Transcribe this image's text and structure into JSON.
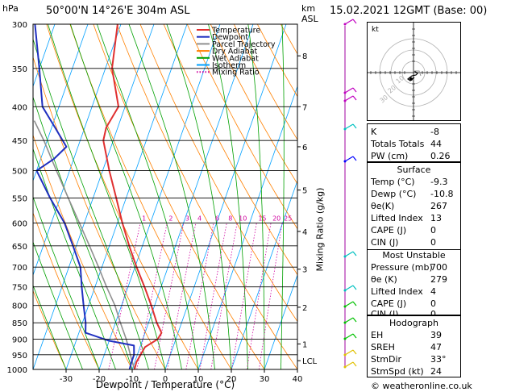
{
  "header": {
    "location": "50°00'N 14°26'E 304m ASL",
    "datetime": "15.02.2021 12GMT (Base: 00)",
    "hpa_label": "hPa",
    "km_label": "km",
    "asl_label": "ASL"
  },
  "legend": [
    {
      "name": "Temperature",
      "color": "#e03030"
    },
    {
      "name": "Dewpoint",
      "color": "#2030c0"
    },
    {
      "name": "Parcel Trajectory",
      "color": "#909090"
    },
    {
      "name": "Dry Adiabat",
      "color": "#ff8000"
    },
    {
      "name": "Wet Adiabat",
      "color": "#00a000"
    },
    {
      "name": "Isotherm",
      "color": "#00a0ff"
    },
    {
      "name": "Mixing Ratio",
      "color": "#d000a0"
    }
  ],
  "axes": {
    "pressure_levels": [
      300,
      350,
      400,
      450,
      500,
      550,
      600,
      650,
      700,
      750,
      800,
      850,
      900,
      950,
      1000
    ],
    "temp_ticks": [
      -30,
      -20,
      -10,
      0,
      10,
      20,
      30,
      40
    ],
    "xlabel": "Dewpoint / Temperature (°C)",
    "km_ticks": [
      {
        "label": "8",
        "p": 335
      },
      {
        "label": "7",
        "p": 400
      },
      {
        "label": "6",
        "p": 460
      },
      {
        "label": "5",
        "p": 535
      },
      {
        "label": "4",
        "p": 618
      },
      {
        "label": "3",
        "p": 705
      },
      {
        "label": "2",
        "p": 805
      },
      {
        "label": "1",
        "p": 915
      },
      {
        "label": "LCL",
        "p": 970
      }
    ],
    "mixing_ratio_label": "Mixing Ratio (g/kg)",
    "mixing_ratio_values": [
      "1",
      "2",
      "3",
      "4",
      "6",
      "8",
      "10",
      "15",
      "20",
      "25"
    ]
  },
  "chart_data": {
    "type": "skew-t",
    "pressure_range_hpa": [
      1000,
      300
    ],
    "temperature_range_c": [
      -40,
      40
    ],
    "temperature": [
      {
        "p": 1000,
        "t": -9.3
      },
      {
        "p": 975,
        "t": -9.5
      },
      {
        "p": 950,
        "t": -9.0
      },
      {
        "p": 925,
        "t": -8.5
      },
      {
        "p": 900,
        "t": -5.5
      },
      {
        "p": 880,
        "t": -5.0
      },
      {
        "p": 850,
        "t": -7.5
      },
      {
        "p": 800,
        "t": -11.0
      },
      {
        "p": 750,
        "t": -15.0
      },
      {
        "p": 700,
        "t": -19.5
      },
      {
        "p": 650,
        "t": -24.0
      },
      {
        "p": 600,
        "t": -28.5
      },
      {
        "p": 550,
        "t": -33.0
      },
      {
        "p": 500,
        "t": -38.0
      },
      {
        "p": 450,
        "t": -43.0
      },
      {
        "p": 430,
        "t": -43.5
      },
      {
        "p": 400,
        "t": -42.0
      },
      {
        "p": 350,
        "t": -48.0
      },
      {
        "p": 300,
        "t": -51.0
      }
    ],
    "dewpoint": [
      {
        "p": 1000,
        "t": -10.8
      },
      {
        "p": 975,
        "t": -11.0
      },
      {
        "p": 950,
        "t": -11.0
      },
      {
        "p": 920,
        "t": -12.0
      },
      {
        "p": 905,
        "t": -20.0
      },
      {
        "p": 880,
        "t": -28.0
      },
      {
        "p": 850,
        "t": -29.0
      },
      {
        "p": 800,
        "t": -31.5
      },
      {
        "p": 750,
        "t": -34.0
      },
      {
        "p": 700,
        "t": -36.5
      },
      {
        "p": 650,
        "t": -41.0
      },
      {
        "p": 600,
        "t": -46.0
      },
      {
        "p": 550,
        "t": -53.0
      },
      {
        "p": 500,
        "t": -60.0
      },
      {
        "p": 480,
        "t": -56.0
      },
      {
        "p": 460,
        "t": -53.5
      },
      {
        "p": 430,
        "t": -59.0
      },
      {
        "p": 400,
        "t": -65.0
      },
      {
        "p": 350,
        "t": -70.0
      },
      {
        "p": 300,
        "t": -76.0
      }
    ],
    "parcel": [
      {
        "p": 1000,
        "t": -9.3
      },
      {
        "p": 970,
        "t": -11.0
      },
      {
        "p": 900,
        "t": -15.0
      },
      {
        "p": 850,
        "t": -18.5
      },
      {
        "p": 800,
        "t": -22.0
      },
      {
        "p": 750,
        "t": -26.5
      },
      {
        "p": 700,
        "t": -31.0
      },
      {
        "p": 650,
        "t": -36.0
      },
      {
        "p": 600,
        "t": -41.5
      },
      {
        "p": 550,
        "t": -47.5
      },
      {
        "p": 500,
        "t": -54.0
      },
      {
        "p": 450,
        "t": -61.0
      },
      {
        "p": 420,
        "t": -66.0
      }
    ]
  },
  "indices": [
    {
      "label": "K",
      "value": "-8"
    },
    {
      "label": "Totals Totals",
      "value": "44"
    },
    {
      "label": "PW (cm)",
      "value": "0.26"
    }
  ],
  "surface": {
    "title": "Surface",
    "rows": [
      {
        "label": "Temp (°C)",
        "value": "-9.3"
      },
      {
        "label": "Dewp (°C)",
        "value": "-10.8"
      },
      {
        "label": "θe(K)",
        "value": "267"
      },
      {
        "label": "Lifted Index",
        "value": "13"
      },
      {
        "label": "CAPE (J)",
        "value": "0"
      },
      {
        "label": "CIN (J)",
        "value": "0"
      }
    ]
  },
  "most_unstable": {
    "title": "Most Unstable",
    "rows": [
      {
        "label": "Pressure (mb)",
        "value": "700"
      },
      {
        "label": "θe (K)",
        "value": "279"
      },
      {
        "label": "Lifted Index",
        "value": "4"
      },
      {
        "label": "CAPE (J)",
        "value": "0"
      },
      {
        "label": "CIN (J)",
        "value": "0"
      }
    ]
  },
  "hodograph_table": {
    "title": "Hodograph",
    "rows": [
      {
        "label": "EH",
        "value": "39"
      },
      {
        "label": "SREH",
        "value": "47"
      },
      {
        "label": "StmDir",
        "value": "33°"
      },
      {
        "label": "StmSpd (kt)",
        "value": "24"
      }
    ]
  },
  "hodograph_label": "kt",
  "hodograph_ring_labels": [
    "10",
    "20",
    "30"
  ],
  "copyright": "© weatheronline.co.uk"
}
